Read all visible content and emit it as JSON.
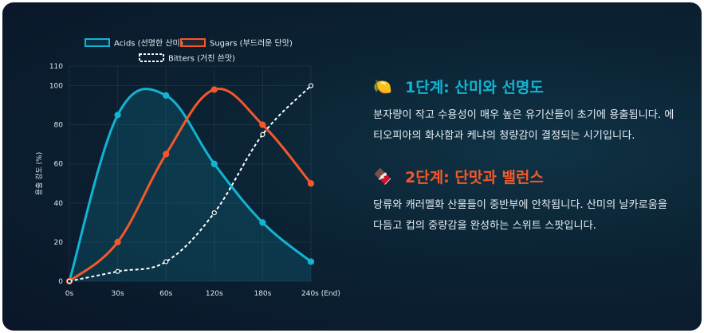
{
  "chart_data": {
    "type": "line",
    "x": [
      "0s",
      "30s",
      "60s",
      "120s",
      "180s",
      "240s (End)"
    ],
    "series": [
      {
        "name": "Acids (선명한 산미)",
        "values": [
          0,
          85,
          95,
          60,
          30,
          10
        ],
        "color": "#12b4d2",
        "style": "solid",
        "fill": true
      },
      {
        "name": "Sugars (부드러운 단맛)",
        "values": [
          0,
          20,
          65,
          98,
          80,
          50
        ],
        "color": "#f3582a",
        "style": "solid",
        "fill": false
      },
      {
        "name": "Bitters (거친 쓴맛)",
        "values": [
          0,
          5,
          10,
          35,
          75,
          100
        ],
        "color": "#ffffff",
        "style": "dashed",
        "fill": false
      }
    ],
    "xlabel": "",
    "ylabel": "용출 강도 (%)",
    "ylim": [
      0,
      110
    ],
    "yticks": [
      "0",
      "20",
      "40",
      "60",
      "80",
      "100",
      "110"
    ],
    "grid": true,
    "legend_position": "top"
  },
  "steps": [
    {
      "icon": "lemon-icon",
      "icon_glyph": "🍋",
      "title": "1단계: 산미와 선명도",
      "color": "#12b4d2",
      "description": "분자량이 작고 수용성이 매우 높은 유기산들이 초기에 용출됩니다. 에티오피아의 화사함과 케냐의 청량감이 결정되는 시기입니다."
    },
    {
      "icon": "chocolate-icon",
      "icon_glyph": "🍫",
      "title": "2단계: 단맛과 밸런스",
      "color": "#f3582a",
      "description": "당류와 캐러멜화 산물들이 중반부에 안착됩니다. 산미의 날카로움을 다듬고 컵의 중량감을 완성하는 스위트 스팟입니다."
    }
  ]
}
